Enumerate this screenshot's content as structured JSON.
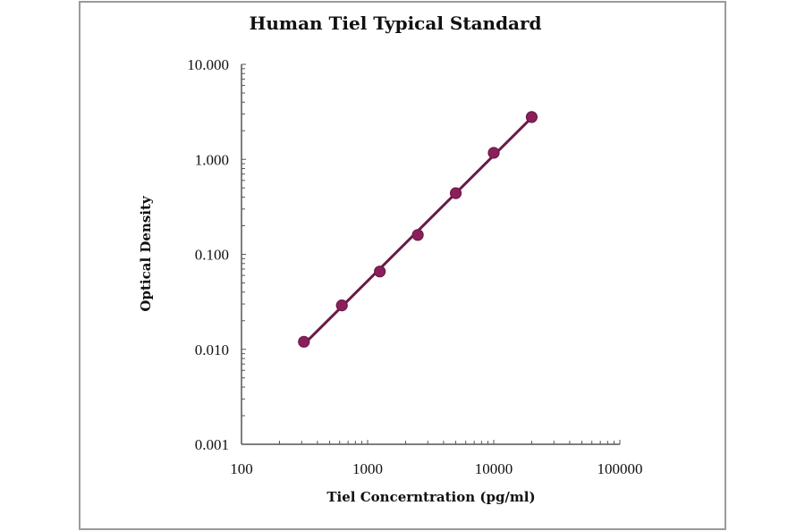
{
  "chart_data": {
    "type": "scatter",
    "title": "Human Tiel Typical Standard",
    "xlabel": "Tiel Concerntration (pg/ml)",
    "ylabel": "Optical Density",
    "x_scale": "log",
    "y_scale": "log",
    "xlim": [
      100,
      100000
    ],
    "ylim": [
      0.001,
      10
    ],
    "x_ticks": [
      "100",
      "1000",
      "10000",
      "100000"
    ],
    "y_ticks": [
      "10.000",
      "1.000",
      "0.100",
      "0.010",
      "0.001"
    ],
    "grid": false,
    "legend": null,
    "series": [
      {
        "name": "Standard",
        "color": "#8B1F5C",
        "line_color": "#6B1A45",
        "x": [
          312.5,
          625,
          1250,
          2500,
          5000,
          10000,
          20000
        ],
        "values": [
          0.012,
          0.029,
          0.066,
          0.16,
          0.44,
          1.17,
          2.79
        ]
      }
    ],
    "fit_line": {
      "type": "linear-log-log",
      "color": "#6B1A45"
    }
  }
}
